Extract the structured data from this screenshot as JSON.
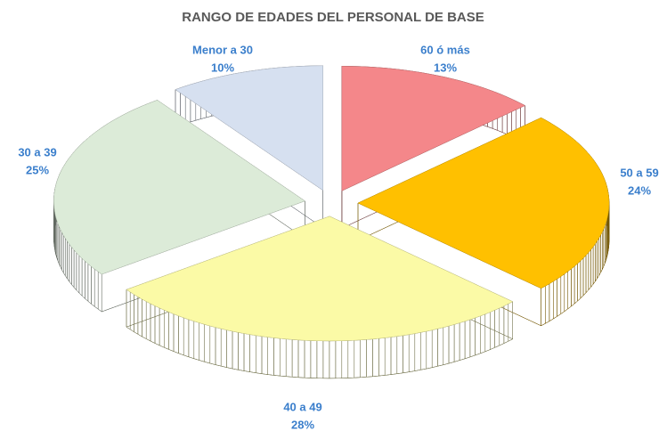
{
  "chart_data": {
    "type": "pie3d",
    "title": "RANGO DE EDADES DEL PERSONAL DE BASE",
    "categories": [
      "60 ó más",
      "50 a 59",
      "40 a 49",
      "30 a 39",
      "Menor a 30"
    ],
    "values": [
      13,
      24,
      28,
      25,
      10
    ],
    "value_labels": [
      "13%",
      "24%",
      "28%",
      "25%",
      "10%"
    ],
    "colors": [
      "#f4878a",
      "#ffc000",
      "#fbfaa6",
      "#dcebd8",
      "#d6e0f0"
    ]
  }
}
